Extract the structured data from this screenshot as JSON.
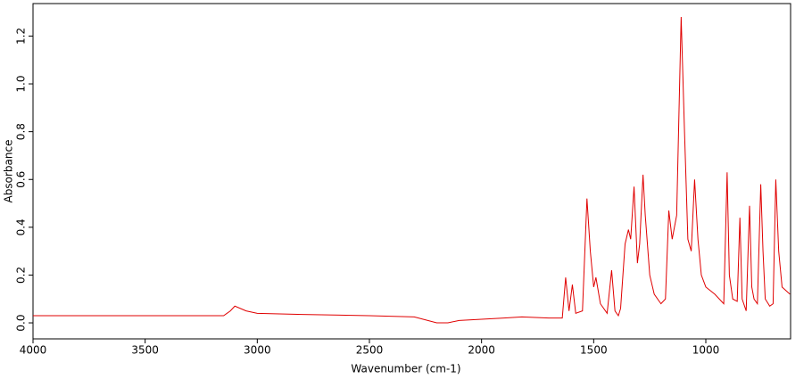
{
  "chart_data": {
    "type": "line",
    "x_label": "Wavenumber (cm-1)",
    "y_label": "Absorbance",
    "xlim": [
      4000,
      622
    ],
    "ylim": [
      -0.067,
      1.336
    ],
    "xticks": [
      4000,
      3500,
      3000,
      2500,
      2000,
      1500,
      1000
    ],
    "yticks": [
      {
        "value": 0,
        "label": "0.0"
      },
      {
        "value": 0.2,
        "label": "0.2"
      },
      {
        "value": 0.4,
        "label": "0.4"
      },
      {
        "value": 0.6,
        "label": "0.6"
      },
      {
        "value": 0.8,
        "label": "0.8"
      },
      {
        "value": 1,
        "label": "1.0"
      },
      {
        "value": 1.2,
        "label": "1.2"
      }
    ],
    "series": [
      {
        "color": "#e00000",
        "x": [
          4000,
          3150,
          3120,
          3100,
          3050,
          3000,
          2800,
          2500,
          2300,
          2200,
          2150,
          2100,
          2000,
          1900,
          1820,
          1700,
          1640,
          1625,
          1610,
          1595,
          1580,
          1550,
          1530,
          1515,
          1500,
          1490,
          1470,
          1440,
          1420,
          1405,
          1390,
          1380,
          1360,
          1345,
          1335,
          1320,
          1305,
          1295,
          1280,
          1270,
          1250,
          1230,
          1200,
          1180,
          1165,
          1150,
          1130,
          1110,
          1095,
          1080,
          1065,
          1050,
          1035,
          1020,
          1000,
          960,
          920,
          905,
          895,
          880,
          860,
          848,
          838,
          820,
          805,
          795,
          785,
          770,
          755,
          745,
          735,
          715,
          700,
          688,
          675,
          660,
          625
        ],
        "values": [
          0.03,
          0.03,
          0.05,
          0.07,
          0.05,
          0.04,
          0.035,
          0.03,
          0.025,
          0.0,
          0.0,
          0.01,
          0.015,
          0.02,
          0.025,
          0.02,
          0.02,
          0.19,
          0.05,
          0.16,
          0.04,
          0.05,
          0.52,
          0.3,
          0.15,
          0.19,
          0.08,
          0.04,
          0.22,
          0.05,
          0.03,
          0.06,
          0.33,
          0.39,
          0.35,
          0.57,
          0.25,
          0.33,
          0.62,
          0.45,
          0.2,
          0.12,
          0.08,
          0.1,
          0.47,
          0.35,
          0.45,
          1.28,
          0.8,
          0.35,
          0.3,
          0.6,
          0.35,
          0.2,
          0.15,
          0.12,
          0.08,
          0.63,
          0.2,
          0.1,
          0.09,
          0.44,
          0.1,
          0.05,
          0.49,
          0.15,
          0.1,
          0.08,
          0.58,
          0.3,
          0.1,
          0.07,
          0.08,
          0.6,
          0.3,
          0.15,
          0.12
        ]
      }
    ]
  }
}
